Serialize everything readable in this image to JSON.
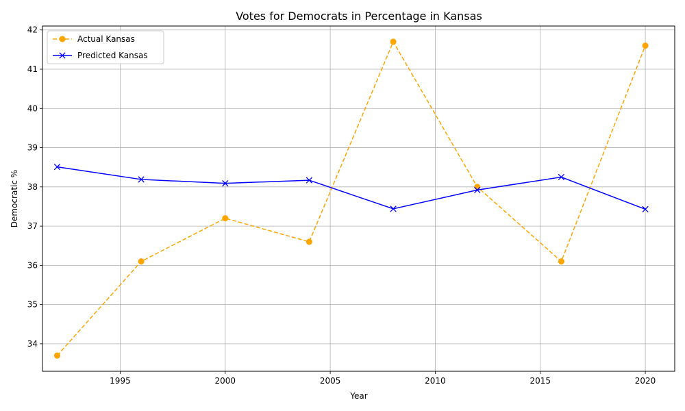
{
  "chart_data": {
    "type": "line",
    "title": "Votes for Democrats in Percentage in Kansas",
    "xlabel": "Year",
    "ylabel": "Democratic %",
    "x": [
      1992,
      1996,
      2000,
      2004,
      2008,
      2012,
      2016,
      2020
    ],
    "xlim": [
      1991.3,
      2021.4
    ],
    "ylim": [
      33.3,
      42.1
    ],
    "xticks": [
      1995,
      2000,
      2005,
      2010,
      2015,
      2020
    ],
    "yticks": [
      34,
      35,
      36,
      37,
      38,
      39,
      40,
      41,
      42
    ],
    "grid": true,
    "legend_position": "top-left",
    "series": [
      {
        "name": "Actual Kansas",
        "color": "#ffa500",
        "line_style": "dashed",
        "marker": "circle",
        "values": [
          33.7,
          36.1,
          37.2,
          36.6,
          41.7,
          38.0,
          36.1,
          41.6
        ]
      },
      {
        "name": "Predicted Kansas",
        "color": "#0000ff",
        "line_style": "solid",
        "marker": "x",
        "values": [
          38.51,
          38.19,
          38.09,
          38.17,
          37.44,
          37.92,
          38.25,
          37.43
        ]
      }
    ]
  }
}
